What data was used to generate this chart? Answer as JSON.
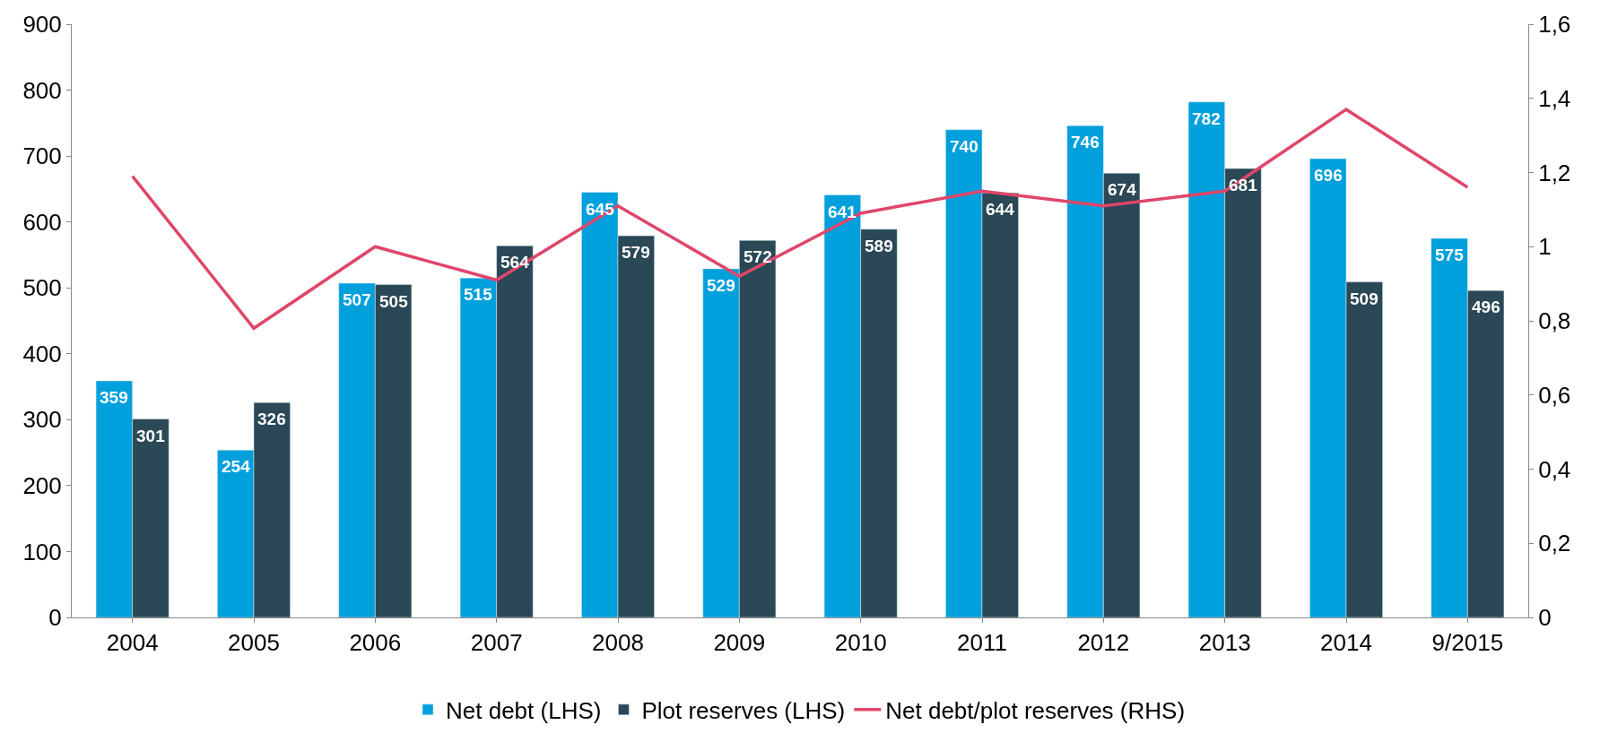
{
  "chart_data": {
    "type": "bar",
    "categories": [
      "2004",
      "2005",
      "2006",
      "2007",
      "2008",
      "2009",
      "2010",
      "2011",
      "2012",
      "2013",
      "2014",
      "9/2015"
    ],
    "series": [
      {
        "name": "Net debt (LHS)",
        "color": "#00a0dc",
        "values": [
          359,
          254,
          507,
          515,
          645,
          529,
          641,
          740,
          746,
          782,
          696,
          575
        ],
        "value_labels": [
          "359",
          "254",
          "507",
          "515",
          "645",
          "529",
          "641",
          "740",
          "746",
          "782",
          "696",
          "575"
        ]
      },
      {
        "name": "Plot reserves (LHS)",
        "color": "#2a4856",
        "values": [
          301,
          326,
          505,
          564,
          579,
          572,
          589,
          644,
          674,
          681,
          509,
          496
        ],
        "value_labels": [
          "301",
          "326",
          "505",
          "564",
          "579",
          "572",
          "589",
          "644",
          "674",
          "681",
          "509",
          "496"
        ]
      },
      {
        "name": "Net debt/plot reserves (RHS)",
        "color": "#e0466a",
        "type": "line",
        "axis": "y2",
        "values": [
          1.19,
          0.78,
          1.0,
          0.91,
          1.11,
          0.92,
          1.09,
          1.15,
          1.11,
          1.15,
          1.37,
          1.16
        ]
      }
    ],
    "ylim": [
      0,
      900
    ],
    "yticks": [
      0,
      100,
      200,
      300,
      400,
      500,
      600,
      700,
      800,
      900
    ],
    "y2lim": [
      0,
      1.6
    ],
    "y2ticks": [
      0,
      {
        "value": 0.2,
        "label": "0,2"
      },
      {
        "value": 0.4,
        "label": "0,4"
      },
      {
        "value": 0.6,
        "label": "0,6"
      },
      {
        "value": 0.8,
        "label": "0,8"
      },
      1,
      {
        "value": 1.2,
        "label": "1,2"
      },
      {
        "value": 1.4,
        "label": "1,4"
      },
      {
        "value": 1.6,
        "label": "1,6"
      }
    ],
    "legend": "bottom"
  }
}
